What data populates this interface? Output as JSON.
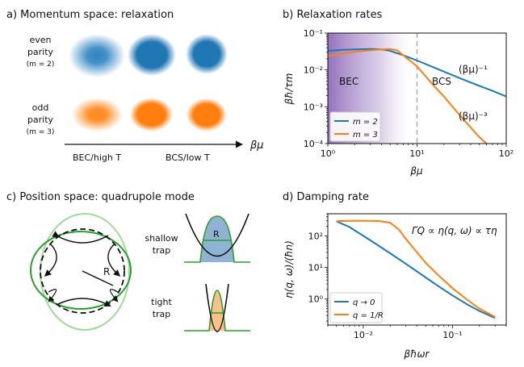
{
  "panels": {
    "a": {
      "title": "a) Momentum space: relaxation",
      "row1_label": [
        "even",
        "parity",
        "(m = 2)"
      ],
      "row2_label": [
        "odd",
        "parity",
        "(m = 3)"
      ],
      "axis_left": "BEC/high T",
      "axis_right": "BCS/low T",
      "axis_var": "βμ",
      "colors": {
        "blue": "#1f77b4",
        "orange": "#ff7f0e"
      }
    },
    "b": {
      "title": "b) Relaxation rates",
      "ylabel": "βħ/τm",
      "xlabel": "βμ",
      "yticks": [
        "10⁻⁴",
        "10⁻³",
        "10⁻²",
        "10⁻¹"
      ],
      "xticks": [
        "10⁰",
        "10¹",
        "10²"
      ],
      "region_bec": "BEC",
      "region_bcs": "BCS",
      "annot_1": "(βμ)⁻¹",
      "annot_3": "(βμ)⁻³",
      "legend": [
        "m = 2",
        "m = 3"
      ]
    },
    "c": {
      "title": "c) Position space: quadrupole mode",
      "radius_label": "R",
      "shallow_label": [
        "shallow",
        "trap"
      ],
      "tight_label": [
        "tight",
        "trap"
      ],
      "colors": {
        "green": "#2ca02c",
        "lightgreen": "#a1d99b",
        "blue": "#8fb3d3",
        "orange": "#f9c08a"
      }
    },
    "d": {
      "title": "d) Damping rate",
      "ylabel": "η(q, ω)/(ħn)",
      "xlabel": "βħωr",
      "yticks": [
        "10⁰",
        "10¹",
        "10²"
      ],
      "xticks": [
        "10⁻²",
        "10⁻¹"
      ],
      "annot": "ΓQ ∝ η(q, ω) ∝ τη",
      "legend": [
        "q → 0",
        "q = 1/R"
      ]
    }
  },
  "chart_data": [
    {
      "type": "line",
      "title": "b) Relaxation rates",
      "xlabel": "βμ",
      "ylabel": "βħ/τm",
      "xscale": "log",
      "yscale": "log",
      "xlim": [
        1,
        100
      ],
      "ylim": [
        0.0001,
        0.1
      ],
      "vline_x": 10,
      "legend_position": "lower-left",
      "series": [
        {
          "name": "m = 2",
          "color": "#1f77b4",
          "x": [
            1,
            1.5,
            2,
            3,
            4,
            5,
            7,
            10,
            15,
            20,
            30,
            50,
            70,
            100
          ],
          "y": [
            0.033,
            0.035,
            0.036,
            0.037,
            0.036,
            0.033,
            0.025,
            0.018,
            0.012,
            0.009,
            0.006,
            0.0037,
            0.0027,
            0.0019
          ]
        },
        {
          "name": "m = 3",
          "color": "#ff7f0e",
          "x": [
            1,
            1.5,
            2,
            3,
            4,
            5,
            6,
            7,
            10,
            15,
            20,
            30,
            50,
            60
          ],
          "y": [
            0.024,
            0.028,
            0.031,
            0.034,
            0.036,
            0.037,
            0.034,
            0.025,
            0.0125,
            0.004,
            0.0019,
            0.0006,
            0.00015,
            0.0001
          ]
        }
      ]
    },
    {
      "type": "line",
      "title": "d) Damping rate",
      "xlabel": "βħωr",
      "ylabel": "η(q, ω)/(ħn)",
      "xscale": "log",
      "yscale": "log",
      "xlim": [
        0.004,
        0.4
      ],
      "ylim": [
        0.15,
        500
      ],
      "legend_position": "lower-left",
      "series": [
        {
          "name": "q → 0",
          "color": "#1f77b4",
          "x": [
            0.005,
            0.007,
            0.01,
            0.015,
            0.02,
            0.03,
            0.05,
            0.07,
            0.1,
            0.15,
            0.2,
            0.3
          ],
          "y": [
            290,
            190,
            100,
            48,
            28,
            13,
            4.8,
            2.5,
            1.3,
            0.65,
            0.42,
            0.25
          ]
        },
        {
          "name": "q = 1/R",
          "color": "#ff7f0e",
          "x": [
            0.005,
            0.007,
            0.01,
            0.015,
            0.02,
            0.025,
            0.03,
            0.04,
            0.05,
            0.07,
            0.1,
            0.15,
            0.2,
            0.3
          ],
          "y": [
            290,
            300,
            300,
            295,
            260,
            160,
            80,
            30,
            14,
            5.5,
            2.2,
            0.9,
            0.5,
            0.27
          ]
        }
      ]
    }
  ]
}
